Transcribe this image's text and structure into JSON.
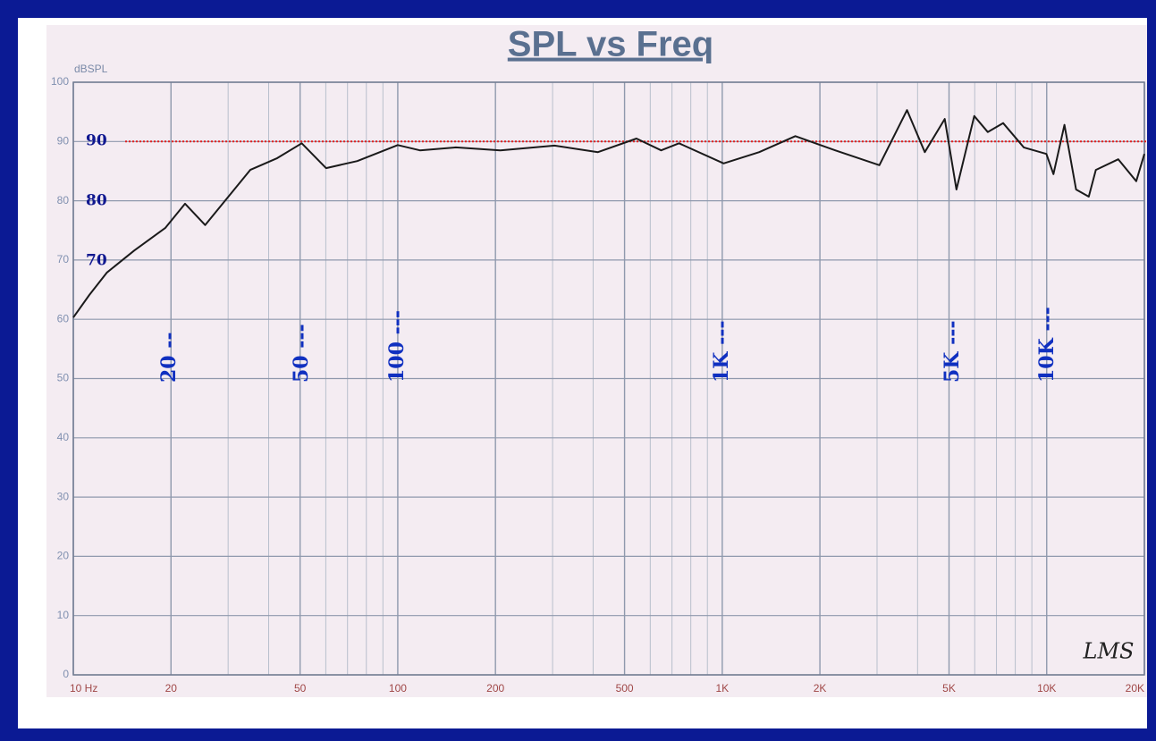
{
  "chart_data": {
    "type": "line",
    "title": "SPL vs Freq",
    "y_label": "dBSPL",
    "x": [
      10,
      11.2,
      12.7,
      15.4,
      19.2,
      22.1,
      25.5,
      35.1,
      42.5,
      50.6,
      60.1,
      75,
      100,
      117,
      151,
      207,
      304,
      414,
      544,
      648,
      736,
      1010,
      1300,
      1680,
      2230,
      3050,
      3710,
      4210,
      4850,
      5270,
      5980,
      6580,
      7340,
      8500,
      9980,
      10490,
      11340,
      12320,
      13480,
      14170,
      16620,
      18880,
      20000
    ],
    "values": [
      60.3,
      64.1,
      67.9,
      71.6,
      75.4,
      79.5,
      75.9,
      85.2,
      87.2,
      89.7,
      85.5,
      86.7,
      89.4,
      88.5,
      89.0,
      88.5,
      89.3,
      88.2,
      90.5,
      88.5,
      89.7,
      86.3,
      88.2,
      90.9,
      88.5,
      86.0,
      95.3,
      88.2,
      93.8,
      81.9,
      94.3,
      91.6,
      93.1,
      89.0,
      87.9,
      84.5,
      92.8,
      81.9,
      80.7,
      85.2,
      87.0,
      83.3,
      87.9
    ],
    "color": "#1a1a1a",
    "xscale": "log",
    "xlim": [
      10,
      20000
    ],
    "ylim": [
      0,
      100
    ],
    "xticks": [
      {
        "value": 10,
        "label": "10 Hz"
      },
      20,
      50,
      100,
      200,
      500,
      {
        "value": 1000,
        "label": "1K"
      },
      {
        "value": 2000,
        "label": "2K"
      },
      {
        "value": 5000,
        "label": "5K"
      },
      {
        "value": 10000,
        "label": "10K"
      },
      {
        "value": 20000,
        "label": "20K"
      }
    ],
    "xminorticks": [
      30,
      40,
      60,
      70,
      80,
      90,
      300,
      400,
      600,
      700,
      800,
      900,
      3000,
      4000,
      6000,
      7000,
      8000,
      9000
    ],
    "yticks": [
      0,
      10,
      20,
      30,
      40,
      50,
      60,
      70,
      80,
      90,
      100
    ],
    "grid": true,
    "reference_line": {
      "value": 90,
      "color": "#e02020"
    },
    "level_notes": [
      "90",
      "80",
      "70"
    ],
    "freq_notes": [
      "20 --",
      "50 ---",
      "100 ---",
      "1K ---",
      "5K ---",
      "10K ---"
    ],
    "signature": "LMS"
  }
}
